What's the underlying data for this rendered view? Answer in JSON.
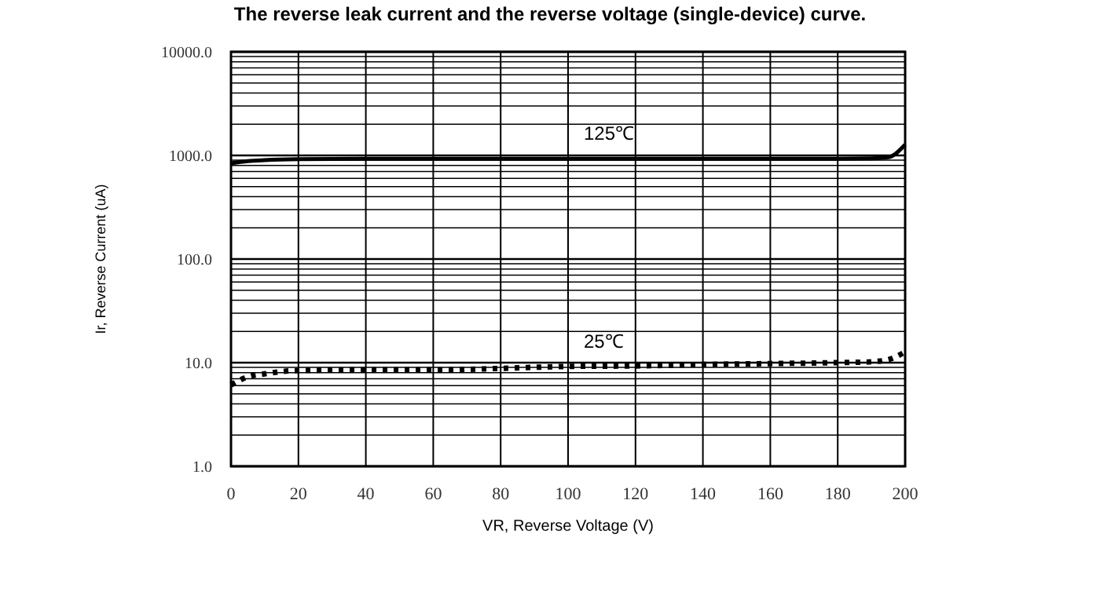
{
  "chart_data": {
    "type": "line",
    "title": "The reverse leak current and the reverse voltage (single-device) curve.",
    "xlabel": "VR, Reverse Voltage (V)",
    "ylabel": "Ir, Reverse Current (uA)",
    "log": "y",
    "grid": true,
    "legend": false,
    "marker": "none",
    "xlim": [
      0,
      200
    ],
    "xticks": [
      0,
      20,
      40,
      60,
      80,
      100,
      120,
      140,
      160,
      180,
      200
    ],
    "ylim": [
      1,
      10000
    ],
    "yticks": [
      {
        "value": 1,
        "label": "1.0"
      },
      {
        "value": 2,
        "label": null
      },
      {
        "value": 3,
        "label": null
      },
      {
        "value": 4,
        "label": null
      },
      {
        "value": 5,
        "label": null
      },
      {
        "value": 6,
        "label": null
      },
      {
        "value": 7,
        "label": null
      },
      {
        "value": 8,
        "label": null
      },
      {
        "value": 9,
        "label": null
      },
      {
        "value": 10,
        "label": "10.0"
      },
      {
        "value": 20,
        "label": null
      },
      {
        "value": 30,
        "label": null
      },
      {
        "value": 40,
        "label": null
      },
      {
        "value": 50,
        "label": null
      },
      {
        "value": 60,
        "label": null
      },
      {
        "value": 70,
        "label": null
      },
      {
        "value": 80,
        "label": null
      },
      {
        "value": 90,
        "label": null
      },
      {
        "value": 100,
        "label": "100.0"
      },
      {
        "value": 200,
        "label": null
      },
      {
        "value": 300,
        "label": null
      },
      {
        "value": 400,
        "label": null
      },
      {
        "value": 500,
        "label": null
      },
      {
        "value": 600,
        "label": null
      },
      {
        "value": 700,
        "label": null
      },
      {
        "value": 800,
        "label": null
      },
      {
        "value": 900,
        "label": null
      },
      {
        "value": 1000,
        "label": "1000.0"
      },
      {
        "value": 2000,
        "label": null
      },
      {
        "value": 3000,
        "label": null
      },
      {
        "value": 4000,
        "label": null
      },
      {
        "value": 5000,
        "label": null
      },
      {
        "value": 6000,
        "label": null
      },
      {
        "value": 7000,
        "label": null
      },
      {
        "value": 8000,
        "label": null
      },
      {
        "value": 9000,
        "label": null
      },
      {
        "value": 10000,
        "label": "10000.0"
      }
    ],
    "x": [
      0,
      5,
      10,
      20,
      40,
      60,
      80,
      100,
      120,
      140,
      160,
      180,
      190,
      195,
      200
    ],
    "series": [
      {
        "name": "125℃",
        "color": "#000000",
        "line_style": "solid",
        "values": [
          840,
          880,
          900,
          920,
          930,
          930,
          930,
          930,
          930,
          930,
          930,
          930,
          935,
          960,
          1270
        ]
      },
      {
        "name": "25℃",
        "color": "#000000",
        "line_style": "dotted",
        "values": [
          6.1,
          7.3,
          7.8,
          8.4,
          8.5,
          8.5,
          8.8,
          9.2,
          9.3,
          9.6,
          9.8,
          10,
          10.2,
          10.7,
          12.7
        ]
      }
    ]
  }
}
